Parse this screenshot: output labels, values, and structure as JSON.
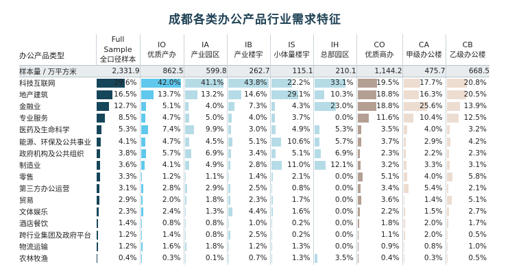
{
  "title": "成都各类办公产品行业需求特征",
  "category_header": "办公产品类型",
  "columns": [
    {
      "code": "Full Sample",
      "name": "全口径样本",
      "color": "#16465a"
    },
    {
      "code": "IO",
      "name": "优质产办",
      "color": "#5fc8ec"
    },
    {
      "code": "IA",
      "name": "产业园区",
      "color": "#b5dbe6"
    },
    {
      "code": "IB",
      "name": "产业楼宇",
      "color": "#b5dbe6"
    },
    {
      "code": "IS",
      "name": "小体量楼宇",
      "color": "#b5dbe6"
    },
    {
      "code": "IH",
      "name": "总部园区",
      "color": "#b5dbe6"
    },
    {
      "code": "CO",
      "name": "优质商办",
      "color": "#b49f93"
    },
    {
      "code": "CA",
      "name": "甲级办公楼",
      "color": "#eddcd0"
    },
    {
      "code": "CB",
      "name": "乙级办公楼",
      "color": "#eddcd0"
    }
  ],
  "sample_label": "样本量 / 万平方米",
  "sample_sizes": [
    "2,331.9",
    "862.5",
    "599.8",
    "262.7",
    "115.1",
    "210.1",
    "1,144.2",
    "475.7",
    "668.5"
  ],
  "rows": [
    {
      "label": "科技互联网",
      "values": [
        29.6,
        42.0,
        41.1,
        43.8,
        22.2,
        33.1,
        19.5,
        17.7,
        20.8
      ]
    },
    {
      "label": "地产建筑",
      "values": [
        16.5,
        13.7,
        13.2,
        14.6,
        29.1,
        10.3,
        18.8,
        16.3,
        20.5
      ]
    },
    {
      "label": "金融业",
      "values": [
        12.7,
        5.1,
        4.0,
        7.3,
        4.3,
        23.0,
        18.8,
        25.6,
        13.9
      ]
    },
    {
      "label": "专业服务",
      "values": [
        8.5,
        4.7,
        5.0,
        4.0,
        3.7,
        0.0,
        11.6,
        10.4,
        12.5
      ]
    },
    {
      "label": "医药及生命科学",
      "values": [
        5.3,
        7.4,
        9.9,
        3.0,
        4.9,
        5.3,
        3.5,
        4.0,
        3.2
      ]
    },
    {
      "label": "能源、环保及公共事业",
      "values": [
        4.1,
        4.7,
        4.5,
        5.1,
        10.6,
        5.7,
        3.7,
        2.9,
        4.2
      ]
    },
    {
      "label": "政府机构及公共组织",
      "values": [
        3.8,
        5.7,
        6.9,
        3.4,
        5.1,
        6.9,
        2.3,
        2.2,
        2.3
      ]
    },
    {
      "label": "制造业",
      "values": [
        3.6,
        4.1,
        4.9,
        2.8,
        11.0,
        12.1,
        3.2,
        3.3,
        3.1
      ]
    },
    {
      "label": "零售",
      "values": [
        3.3,
        1.2,
        1.1,
        1.4,
        2.1,
        0.0,
        5.1,
        4.0,
        5.8
      ]
    },
    {
      "label": "第三方办公运营",
      "values": [
        3.1,
        2.8,
        2.9,
        2.5,
        0.8,
        0.0,
        3.4,
        5.4,
        2.1
      ]
    },
    {
      "label": "贸易",
      "values": [
        2.9,
        2.0,
        1.8,
        2.3,
        1.7,
        0.0,
        3.6,
        1.4,
        5.1
      ]
    },
    {
      "label": "文体娱乐",
      "values": [
        2.3,
        2.4,
        1.3,
        4.4,
        1.6,
        0.0,
        2.2,
        1.5,
        2.7
      ]
    },
    {
      "label": "酒店餐饮",
      "values": [
        1.4,
        0.8,
        0.8,
        1.0,
        0.2,
        0.0,
        1.8,
        2.0,
        1.7
      ]
    },
    {
      "label": "跨行业集团及政府平台",
      "values": [
        1.2,
        1.4,
        0.8,
        2.5,
        0.2,
        0.0,
        1.1,
        2.0,
        0.5
      ]
    },
    {
      "label": "物流运输",
      "values": [
        1.2,
        1.6,
        1.8,
        1.2,
        1.3,
        0.0,
        0.9,
        0.8,
        1.0
      ]
    },
    {
      "label": "农林牧渔",
      "values": [
        0.4,
        0.3,
        0.1,
        0.7,
        1.3,
        3.5,
        0.4,
        0.3,
        0.5
      ]
    }
  ],
  "value_suffix": "%",
  "bar_scale_max": 44
}
